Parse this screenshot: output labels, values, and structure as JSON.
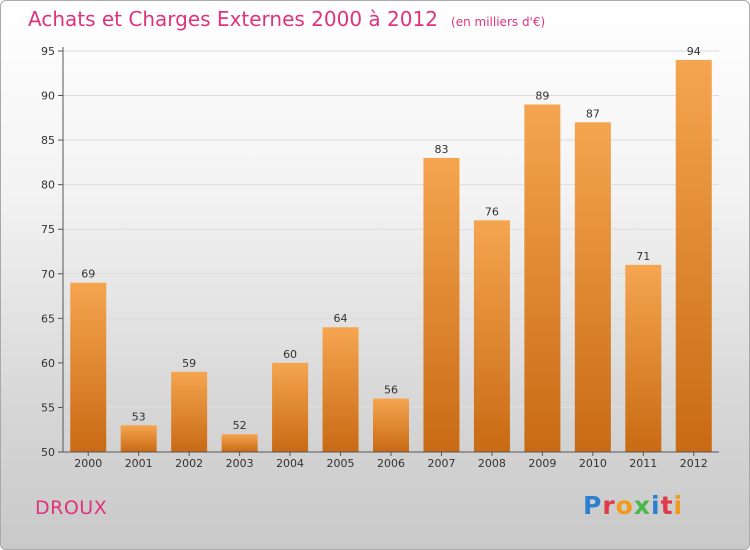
{
  "header": {
    "title": "Achats et Charges Externes 2000 à 2012",
    "unit": "(en milliers d'€)"
  },
  "footer": {
    "city": "DROUX",
    "brand": "Proxiti"
  },
  "colors": {
    "title": "#e0337d",
    "bar_light": "#f5a550",
    "bar_dark": "#c96a14",
    "axis": "#555555",
    "grid": "#dddddd",
    "brand_letters": [
      "#2f7fd0",
      "#e03a4a",
      "#f29a1b",
      "#4bb84b",
      "#2f7fd0",
      "#e03a4a",
      "#f29a1b"
    ]
  },
  "chart_data": {
    "type": "bar",
    "title": "Achats et Charges Externes 2000 à 2012",
    "unit": "(en milliers d'€)",
    "categories": [
      "2000",
      "2001",
      "2002",
      "2003",
      "2004",
      "2005",
      "2006",
      "2007",
      "2008",
      "2009",
      "2010",
      "2011",
      "2012"
    ],
    "values": [
      69,
      53,
      59,
      52,
      60,
      64,
      56,
      83,
      76,
      89,
      87,
      71,
      94
    ],
    "ylim": [
      50,
      95
    ],
    "yticks": [
      50,
      55,
      60,
      65,
      70,
      75,
      80,
      85,
      90,
      95
    ],
    "grid": true,
    "legend": "none"
  }
}
